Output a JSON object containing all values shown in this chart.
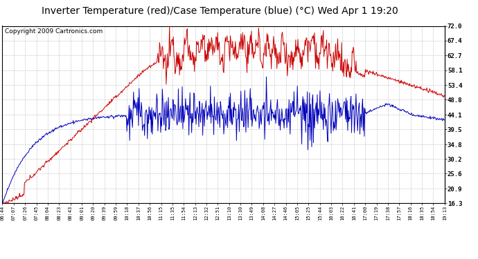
{
  "title": "Inverter Temperature (red)/Case Temperature (blue) (°C) Wed Apr 1 19:20",
  "copyright": "Copyright 2009 Cartronics.com",
  "background_color": "#ffffff",
  "plot_bg_color": "#ffffff",
  "grid_color": "#aaaaaa",
  "red_color": "#cc0000",
  "blue_color": "#0000bb",
  "y_ticks": [
    16.3,
    20.9,
    25.6,
    30.2,
    34.8,
    39.5,
    44.1,
    48.8,
    53.4,
    58.1,
    62.7,
    67.4,
    72.0
  ],
  "x_labels": [
    "06:44",
    "07:07",
    "07:26",
    "07:45",
    "08:04",
    "08:23",
    "08:43",
    "09:01",
    "09:20",
    "09:39",
    "09:59",
    "10:18",
    "10:37",
    "10:56",
    "11:15",
    "11:35",
    "11:54",
    "12:13",
    "12:32",
    "12:51",
    "13:10",
    "13:30",
    "13:49",
    "14:08",
    "14:27",
    "14:46",
    "15:05",
    "15:25",
    "15:44",
    "16:03",
    "16:22",
    "16:41",
    "17:00",
    "17:19",
    "17:38",
    "17:57",
    "18:16",
    "18:35",
    "18:54",
    "19:13"
  ],
  "y_min": 16.3,
  "y_max": 72.0,
  "title_fontsize": 10,
  "copyright_fontsize": 6.5
}
